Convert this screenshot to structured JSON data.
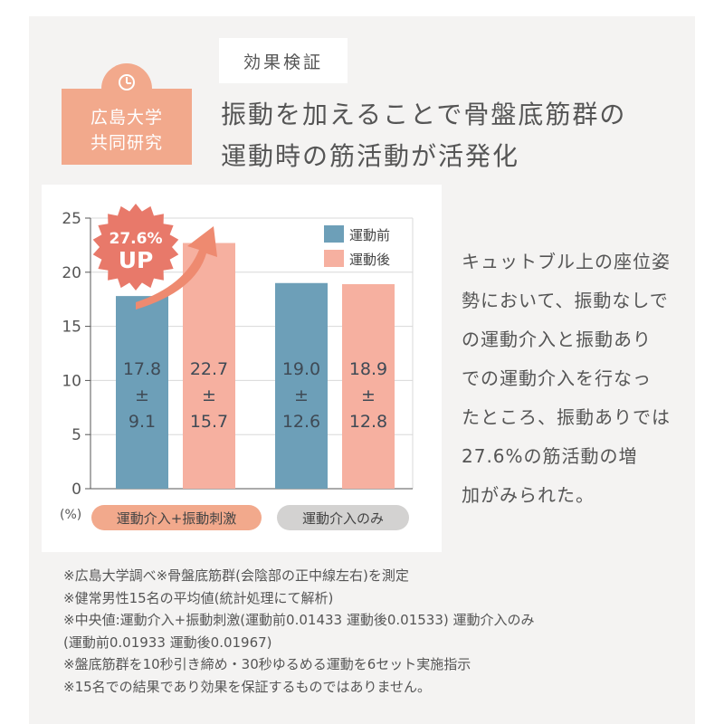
{
  "badge": {
    "line1": "広島大学",
    "line2": "共同研究"
  },
  "tag": "効果検証",
  "headline": {
    "line1": "振動を加えることで骨盤底筋群の",
    "line2": "運動時の筋活動が活発化"
  },
  "description": [
    "キュットブル上の座位姿",
    "勢において、振動なしで",
    "の運動介入と振動あり",
    "での運動介入を行なっ",
    "たところ、振動ありでは",
    "27.6%の筋活動の増",
    "加がみられた。"
  ],
  "notes": [
    "※広島大学調べ※骨盤底筋群(会陰部の正中線左右)を測定",
    "※健常男性15名の平均値(統計処理にて解析)",
    "※中央値:運動介入+振動刺激(運動前0.01433 運動後0.01533) 運動介入のみ",
    "(運動前0.01933 運動後0.01967)",
    "※盤底筋群を10秒引き締め・30秒ゆるめる運動を6セット実施指示",
    "※15名での結果であり効果を保証するものではありません。"
  ],
  "colors": {
    "before": "#6d9fb8",
    "after": "#f6b0a0",
    "accent": "#f2a98c",
    "highlight": "#e8796a",
    "pill_gray": "#d3d2d1"
  },
  "chart_data": {
    "type": "bar",
    "ylim": [
      0,
      25
    ],
    "yticks": [
      "0",
      "5",
      "10",
      "15",
      "20",
      "25"
    ],
    "unit_label": "(%)",
    "grid": true,
    "legend_position": "top-right",
    "categories": [
      "運動介入+振動刺激",
      "運動介入のみ"
    ],
    "series": [
      {
        "name": "運動前",
        "values": [
          17.8,
          19.0
        ],
        "sd": [
          9.1,
          12.6
        ],
        "labels": [
          [
            "17.8",
            "±",
            "9.1"
          ],
          [
            "19.0",
            "±",
            "12.6"
          ]
        ]
      },
      {
        "name": "運動後",
        "values": [
          22.7,
          18.9
        ],
        "sd": [
          15.7,
          12.8
        ],
        "labels": [
          [
            "22.7",
            "±",
            "15.7"
          ],
          [
            "18.9",
            "±",
            "12.8"
          ]
        ]
      }
    ],
    "annotation": {
      "line1": "27.6%",
      "line2": "UP"
    }
  }
}
